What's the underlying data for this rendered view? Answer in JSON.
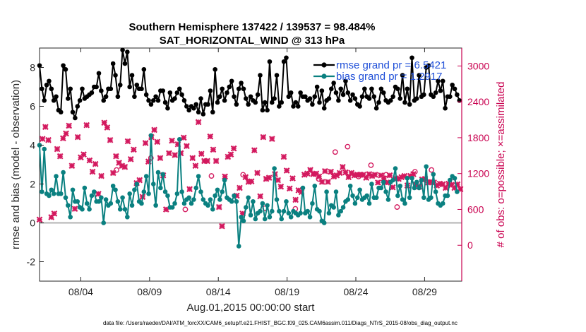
{
  "chart_data": {
    "type": "line",
    "title_line1": "Southern Hemisphere 137422 / 139537 = 98.484%",
    "title_line2": "SAT_HORIZONTAL_WIND @ 313 hPa",
    "ylabel_left": "rmse and bias (model - observation)",
    "ylabel_right": "# of obs: o=possible; ×=assimilated",
    "xlabel": "Aug.01,2015 00:00:00 start",
    "footnote": "data file: /Users/raeder/DAI/ATM_forcXX/CAM6_setup/f.e21.FHIST_BGC.f09_025.CAM6assim.011/Diags_NTrS_2015-08/obs_diag_output.nc",
    "x_ticks": [
      "08/04",
      "08/09",
      "08/14",
      "08/19",
      "08/24",
      "08/29"
    ],
    "x_tick_days": [
      4,
      9,
      14,
      19,
      24,
      29
    ],
    "x_range_days": [
      1.0,
      31.7
    ],
    "ylim_left": [
      -3,
      9
    ],
    "y_ticks_left": [
      "-2",
      "0",
      "2",
      "4",
      "6",
      "8"
    ],
    "y_tick_values_left": [
      -2,
      0,
      2,
      4,
      6,
      8
    ],
    "ylim_right": [
      -600,
      3300
    ],
    "y_ticks_right": [
      "0",
      "600",
      "1200",
      "1800",
      "2400",
      "3000"
    ],
    "y_tick_values_right": [
      0,
      600,
      1200,
      1800,
      2400,
      3000
    ],
    "zero_line": 0,
    "colors": {
      "rmse": "#000000",
      "bias": "#0a8080",
      "obs": "#d3195e",
      "zero_line": "#b3b3b3",
      "right_axis": "#c9004f",
      "legend_text": "#1f4fd8"
    },
    "series": [
      {
        "name": "rmse grand pr = 6.5421",
        "axis": "left",
        "values": [
          8.1,
          6.9,
          6.3,
          7.1,
          7.3,
          6.9,
          6.3,
          6.5,
          5.8,
          5.7,
          8.1,
          7.9,
          6.4,
          6.9,
          5.7,
          5.4,
          6.0,
          6.3,
          6.9,
          6.4,
          6.5,
          6.6,
          6.7,
          7.0,
          7.0,
          7.7,
          6.8,
          6.3,
          6.5,
          6.9,
          6.9,
          8.2,
          7.6,
          6.5,
          7.1,
          8.9,
          8.2,
          8.8,
          7.0,
          7.6,
          6.5,
          7.1,
          6.9,
          6.9,
          7.9,
          6.6,
          6.3,
          6.1,
          6.3,
          6.5,
          6.3,
          6.8,
          6.8,
          6.2,
          5.9,
          6.7,
          6.3,
          6.4,
          6.7,
          6.9,
          6.6,
          6.3,
          6.0,
          5.8,
          6.0,
          5.9,
          6.1,
          5.7,
          6.4,
          5.6,
          6.1,
          6.1,
          6.8,
          5.7,
          7.9,
          6.2,
          6.5,
          6.9,
          6.3,
          6.7,
          7.0,
          7.3,
          6.5,
          6.1,
          6.9,
          7.2,
          6.9,
          6.4,
          6.1,
          6.5,
          6.3,
          6.2,
          6.6,
          7.6,
          5.8,
          6.2,
          5.8,
          8.3,
          6.2,
          6.4,
          7.6,
          6.0,
          6.2,
          8.3,
          8.5,
          6.5,
          6.7,
          6.0,
          6.2,
          6.0,
          6.7,
          6.5,
          6.5,
          6.3,
          6.4,
          6.1,
          6.5,
          7.0,
          6.2,
          6.8,
          5.9,
          6.3,
          6.4,
          6.9,
          7.2,
          6.7,
          6.3,
          6.9,
          6.6,
          7.3,
          6.7,
          6.3,
          6.6,
          6.4,
          6.1,
          6.0,
          6.5,
          6.9,
          6.5,
          6.4,
          6.9,
          6.5,
          5.9,
          6.2,
          6.9,
          6.7,
          6.3,
          6.2,
          6.3,
          6.5,
          7.0,
          6.9,
          6.4,
          7.6,
          6.2,
          6.9,
          6.1,
          8.5,
          6.3,
          6.4,
          7.6,
          6.5,
          6.6,
          8.0,
          8.1,
          6.6,
          6.5,
          6.7,
          7.3,
          6.8,
          7.3,
          5.9,
          6.5,
          6.5,
          7.1,
          6.9,
          6.6,
          6.3,
          5.9
        ],
        "x_start_day": 1.0,
        "x_step_day": 0.1725
      },
      {
        "name": "bias grand pr = 1.2917",
        "axis": "left",
        "values": [
          4.0,
          1.6,
          3.8,
          1.5,
          1.4,
          1.7,
          1.5,
          2.4,
          1.5,
          1.5,
          2.6,
          1.3,
          0.9,
          0.3,
          1.7,
          1.1,
          1.1,
          0.8,
          0.7,
          1.8,
          1.0,
          0.7,
          1.4,
          1.6,
          1.1,
          1.1,
          1.3,
          0.0,
          1.2,
          0.9,
          1.0,
          1.9,
          1.7,
          1.1,
          0.7,
          1.3,
          0.7,
          0.3,
          1.5,
          0.9,
          1.7,
          2.0,
          1.1,
          1.0,
          1.6,
          2.4,
          1.5,
          4.5,
          2.0,
          0.9,
          2.6,
          1.8,
          2.5,
          1.6,
          1.4,
          0.8,
          0.8,
          1.0,
          1.5,
          4.3,
          1.6,
          1.0,
          1.2,
          1.3,
          1.0,
          1.2,
          1.8,
          2.4,
          1.6,
          1.2,
          1.0,
          0.9,
          1.2,
          0.7,
          1.4,
          1.7,
          1.2,
          1.6,
          2.2,
          1.3,
          1.2,
          1.1,
          1.4,
          1.1,
          -1.2,
          0.3,
          0.1,
          0.8,
          1.3,
          0.4,
          1.1,
          0.2,
          0.5,
          0.6,
          1.0,
          0.2,
          0.9,
          0.3,
          0.6,
          2.8,
          1.2,
          0.6,
          0.2,
          0.6,
          1.1,
          0.5,
          0.3,
          0.6,
          0.5,
          0.4,
          0.5,
          1.8,
          0.5,
          0.6,
          0.3,
          1.0,
          1.9,
          0.7,
          0.6,
          0.1,
          0.0,
          1.6,
          0.5,
          0.9,
          0.8,
          1.6,
          0.4,
          0.6,
          0.8,
          1.1,
          1.2,
          1.9,
          1.4,
          1.0,
          1.3,
          1.7,
          1.2,
          1.3,
          1.4,
          1.0,
          2.0,
          1.3,
          1.3,
          1.8,
          1.8,
          2.1,
          1.6,
          1.2,
          2.1,
          2.2,
          2.8,
          1.4,
          1.9,
          1.2,
          1.0,
          2.3,
          1.3,
          2.3,
          1.8,
          2.1,
          1.8,
          2.2,
          1.3,
          2.9,
          1.2,
          1.3,
          2.5,
          1.6,
          1.0,
          0.9,
          1.0,
          1.4,
          1.4,
          2.2,
          2.4,
          2.3,
          1.6
        ],
        "x_start_day": 1.0,
        "x_step_day": 0.1725
      },
      {
        "name": "obs assimilated",
        "axis": "right",
        "marker": "x",
        "values": [
          430,
          1780,
          1980,
          1760,
          470,
          530,
          1610,
          1490,
          1790,
          1870,
          2000,
          1330,
          610,
          1810,
          1470,
          1520,
          2010,
          1420,
          1230,
          1360,
          860,
          1160,
          2050,
          1970,
          1760,
          1210,
          1490,
          1380,
          1330,
          1310,
          1740,
          1440,
          1600,
          1040,
          1090,
          810,
          1710,
          1400,
          1810,
          1930,
          1730,
          1460,
          1170,
          600,
          1540,
          1750,
          1510,
          1690,
          1540,
          1800,
          1660,
          940,
          1460,
          1330,
          2060,
          1530,
          1410,
          1410,
          1820,
          1600,
          1410,
          640,
          320,
          1150,
          1480,
          1520,
          1620,
          830,
          960,
          530,
          1140,
          1060,
          1070,
          1590,
          1210,
          820,
          1810,
          1110,
          1130,
          1780,
          1190,
          1090,
          980,
          1480,
          1250,
          950,
          1120,
          760,
          920,
          890,
          1180,
          1200,
          1260,
          1190,
          1200,
          1150,
          1060,
          1240,
          1060,
          1230,
          1150,
          1170,
          1210,
          1310,
          1220,
          1140,
          1210,
          1170,
          1180,
          1180,
          1180,
          1130,
          1190,
          1160,
          1180,
          1050,
          1170,
          1120,
          1050,
          1170,
          970,
          1120,
          1110,
          1140,
          1160,
          1000,
          1160,
          1190,
          1010,
          980,
          1100,
          1110,
          1050,
          1060,
          1050,
          1000,
          1030,
          1020,
          960,
          1030,
          1010,
          960,
          1020,
          940
        ],
        "x_start_day": 1.0,
        "x_step_day": 0.214
      },
      {
        "name": "obs possible",
        "axis": "right",
        "marker": "o",
        "values": [
          1260,
          1460,
          600,
          1160,
          1180,
          620,
          610,
          1110,
          1560,
          1650,
          1150,
          1340,
          1180,
          640,
          1230,
          1260,
          1070
        ],
        "x_days": [
          6.6,
          9.1,
          11.6,
          13.5,
          15.8,
          17.4,
          19.6,
          21.3,
          22.5,
          23.4,
          24.2,
          25.1,
          26.2,
          27.0,
          28.3,
          29.5,
          31.1
        ]
      }
    ]
  }
}
